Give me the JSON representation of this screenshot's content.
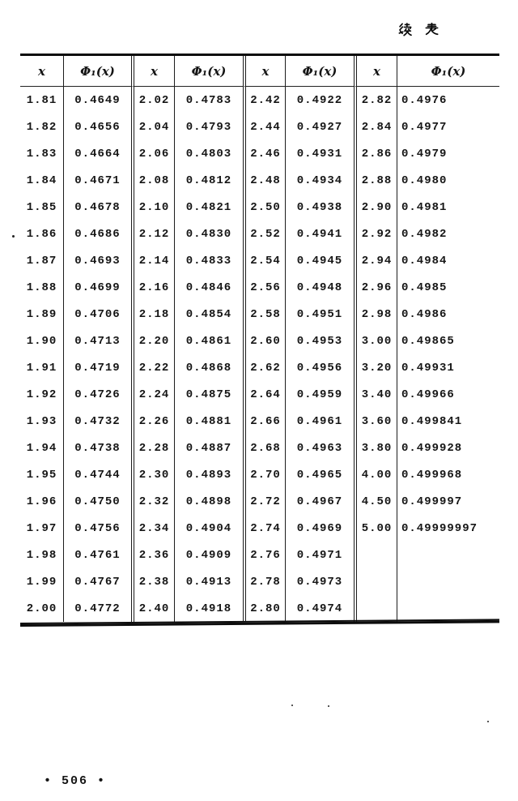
{
  "page": {
    "continued_label": "续 表",
    "page_number": "• 506 •"
  },
  "table": {
    "headers": [
      "x",
      "Φ₁(x)",
      "x",
      "Φ₁(x)",
      "x",
      "Φ₁(x)",
      "x",
      "Φ₁(x)"
    ],
    "pairs": [
      {
        "rows": [
          {
            "x": "1.81",
            "phi": "0.4649"
          },
          {
            "x": "1.82",
            "phi": "0.4656"
          },
          {
            "x": "1.83",
            "phi": "0.4664"
          },
          {
            "x": "1.84",
            "phi": "0.4671"
          },
          {
            "x": "1.85",
            "phi": "0.4678"
          },
          {
            "x": "1.86",
            "phi": "0.4686"
          },
          {
            "x": "1.87",
            "phi": "0.4693"
          },
          {
            "x": "1.88",
            "phi": "0.4699"
          },
          {
            "x": "1.89",
            "phi": "0.4706"
          },
          {
            "x": "1.90",
            "phi": "0.4713"
          },
          {
            "x": "1.91",
            "phi": "0.4719"
          },
          {
            "x": "1.92",
            "phi": "0.4726"
          },
          {
            "x": "1.93",
            "phi": "0.4732"
          },
          {
            "x": "1.94",
            "phi": "0.4738"
          },
          {
            "x": "1.95",
            "phi": "0.4744"
          },
          {
            "x": "1.96",
            "phi": "0.4750"
          },
          {
            "x": "1.97",
            "phi": "0.4756"
          },
          {
            "x": "1.98",
            "phi": "0.4761"
          },
          {
            "x": "1.99",
            "phi": "0.4767"
          },
          {
            "x": "2.00",
            "phi": "0.4772"
          }
        ]
      },
      {
        "rows": [
          {
            "x": "2.02",
            "phi": "0.4783"
          },
          {
            "x": "2.04",
            "phi": "0.4793"
          },
          {
            "x": "2.06",
            "phi": "0.4803"
          },
          {
            "x": "2.08",
            "phi": "0.4812"
          },
          {
            "x": "2.10",
            "phi": "0.4821"
          },
          {
            "x": "2.12",
            "phi": "0.4830"
          },
          {
            "x": "2.14",
            "phi": "0.4833"
          },
          {
            "x": "2.16",
            "phi": "0.4846"
          },
          {
            "x": "2.18",
            "phi": "0.4854"
          },
          {
            "x": "2.20",
            "phi": "0.4861"
          },
          {
            "x": "2.22",
            "phi": "0.4868"
          },
          {
            "x": "2.24",
            "phi": "0.4875"
          },
          {
            "x": "2.26",
            "phi": "0.4881"
          },
          {
            "x": "2.28",
            "phi": "0.4887"
          },
          {
            "x": "2.30",
            "phi": "0.4893"
          },
          {
            "x": "2.32",
            "phi": "0.4898"
          },
          {
            "x": "2.34",
            "phi": "0.4904"
          },
          {
            "x": "2.36",
            "phi": "0.4909"
          },
          {
            "x": "2.38",
            "phi": "0.4913"
          },
          {
            "x": "2.40",
            "phi": "0.4918"
          }
        ]
      },
      {
        "rows": [
          {
            "x": "2.42",
            "phi": "0.4922"
          },
          {
            "x": "2.44",
            "phi": "0.4927"
          },
          {
            "x": "2.46",
            "phi": "0.4931"
          },
          {
            "x": "2.48",
            "phi": "0.4934"
          },
          {
            "x": "2.50",
            "phi": "0.4938"
          },
          {
            "x": "2.52",
            "phi": "0.4941"
          },
          {
            "x": "2.54",
            "phi": "0.4945"
          },
          {
            "x": "2.56",
            "phi": "0.4948"
          },
          {
            "x": "2.58",
            "phi": "0.4951"
          },
          {
            "x": "2.60",
            "phi": "0.4953"
          },
          {
            "x": "2.62",
            "phi": "0.4956"
          },
          {
            "x": "2.64",
            "phi": "0.4959"
          },
          {
            "x": "2.66",
            "phi": "0.4961"
          },
          {
            "x": "2.68",
            "phi": "0.4963"
          },
          {
            "x": "2.70",
            "phi": "0.4965"
          },
          {
            "x": "2.72",
            "phi": "0.4967"
          },
          {
            "x": "2.74",
            "phi": "0.4969"
          },
          {
            "x": "2.76",
            "phi": "0.4971"
          },
          {
            "x": "2.78",
            "phi": "0.4973"
          },
          {
            "x": "2.80",
            "phi": "0.4974"
          }
        ]
      },
      {
        "rows": [
          {
            "x": "2.82",
            "phi": "0.4976"
          },
          {
            "x": "2.84",
            "phi": "0.4977"
          },
          {
            "x": "2.86",
            "phi": "0.4979"
          },
          {
            "x": "2.88",
            "phi": "0.4980"
          },
          {
            "x": "2.90",
            "phi": "0.4981"
          },
          {
            "x": "2.92",
            "phi": "0.4982"
          },
          {
            "x": "2.94",
            "phi": "0.4984"
          },
          {
            "x": "2.96",
            "phi": "0.4985"
          },
          {
            "x": "2.98",
            "phi": "0.4986"
          },
          {
            "x": "3.00",
            "phi": "0.49865"
          },
          {
            "x": "3.20",
            "phi": "0.49931"
          },
          {
            "x": "3.40",
            "phi": "0.49966"
          },
          {
            "x": "3.60",
            "phi": "0.499841"
          },
          {
            "x": "3.80",
            "phi": "0.499928"
          },
          {
            "x": "4.00",
            "phi": "0.499968"
          },
          {
            "x": "4.50",
            "phi": "0.499997"
          },
          {
            "x": "5.00",
            "phi": "0.49999997"
          },
          {
            "x": "",
            "phi": ""
          },
          {
            "x": "",
            "phi": ""
          },
          {
            "x": "",
            "phi": ""
          }
        ]
      }
    ]
  }
}
